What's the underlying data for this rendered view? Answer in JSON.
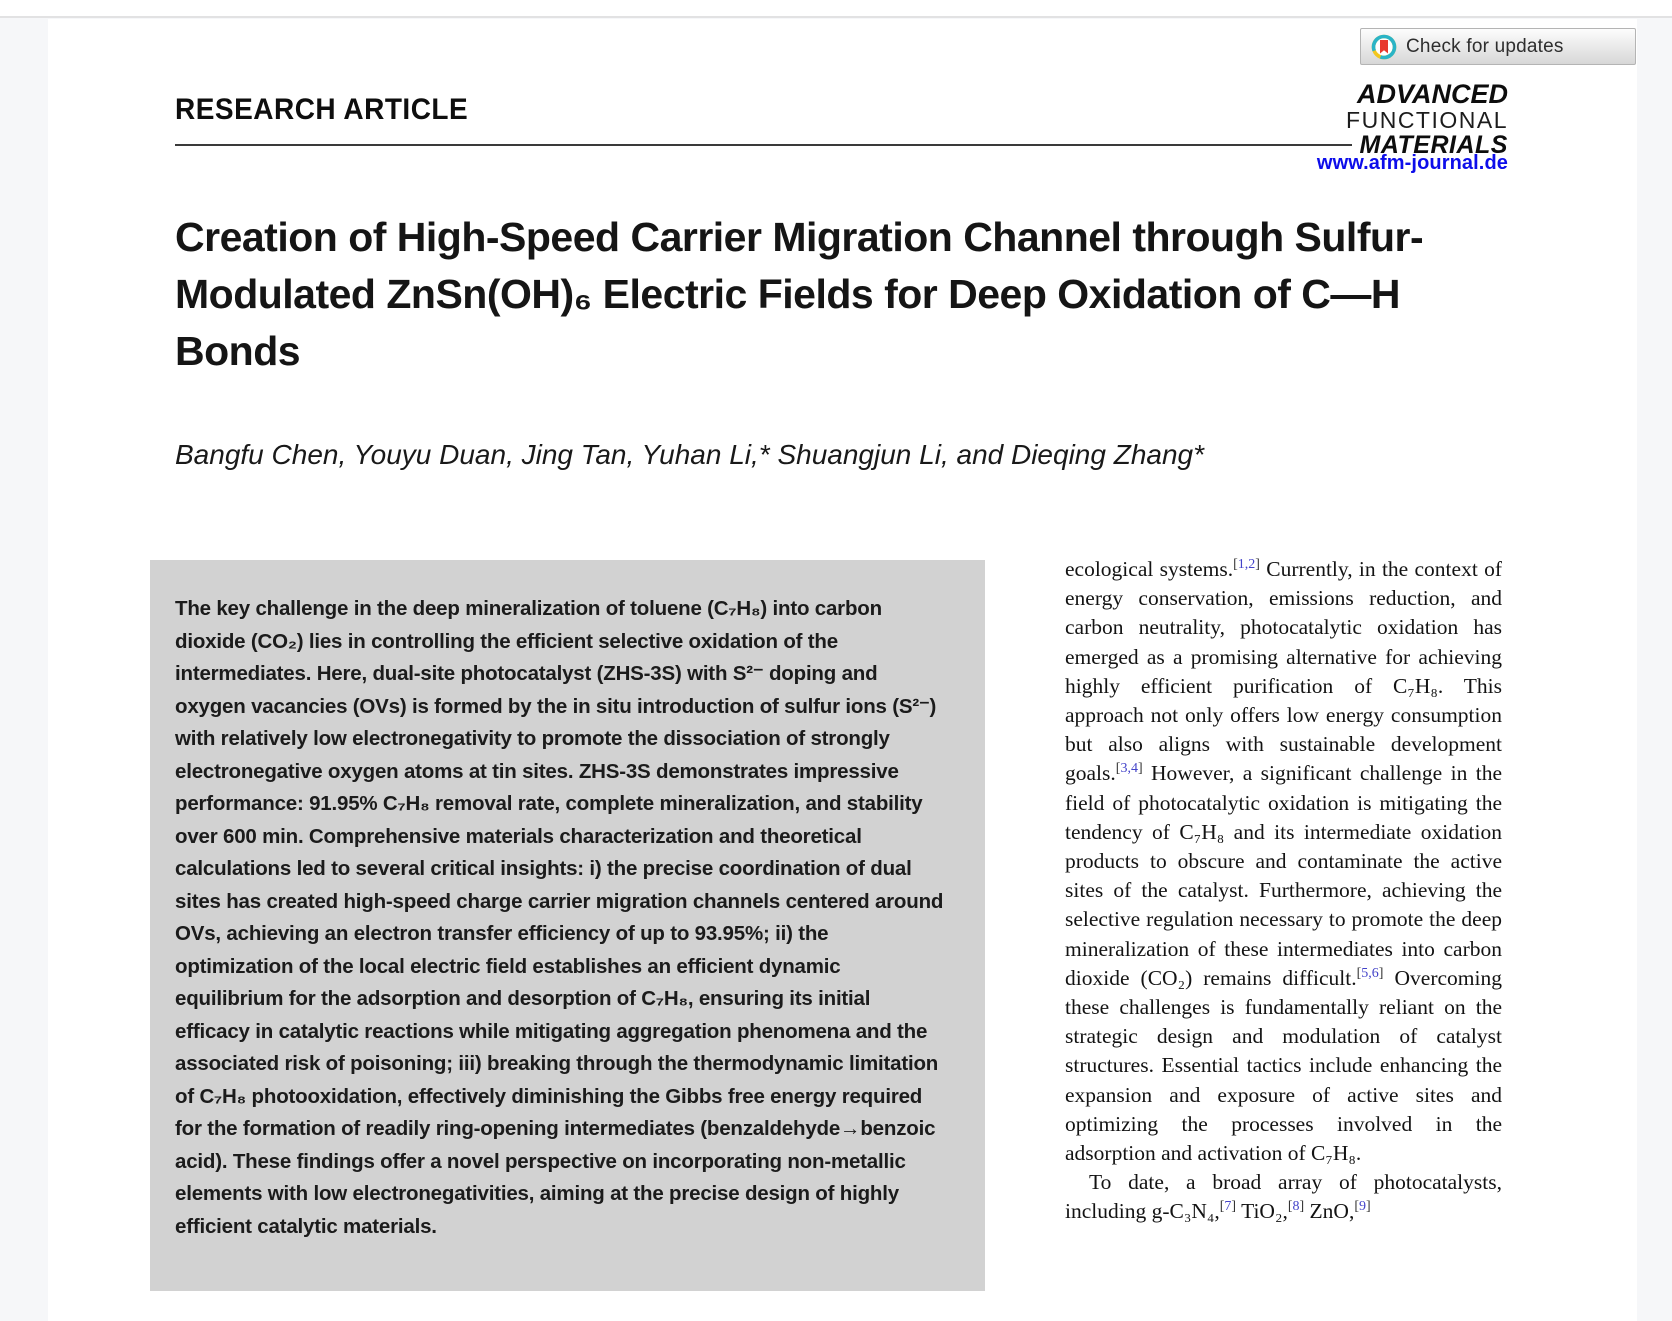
{
  "header": {
    "check_for_updates": "Check for updates",
    "article_type": "RESEARCH ARTICLE",
    "journal_logo": {
      "line1": "ADVANCED",
      "line2": "FUNCTIONAL",
      "line3": "MATERIALS"
    },
    "journal_url": "www.afm-journal.de"
  },
  "article": {
    "title": "Creation of High-Speed Carrier Migration Channel through Sulfur-Modulated ZnSn(OH)₆ Electric Fields for Deep Oxidation of C—H Bonds",
    "authors": "Bangfu Chen, Youyu Duan, Jing Tan, Yuhan Li,* Shuangjun Li, and Dieqing Zhang*",
    "abstract": "The key challenge in the deep mineralization of toluene (C₇H₈) into carbon dioxide (CO₂) lies in controlling the efficient selective oxidation of the intermediates. Here, dual-site photocatalyst (ZHS-3S) with S²⁻ doping and oxygen vacancies (OVs) is formed by the in situ introduction of sulfur ions (S²⁻) with relatively low electronegativity to promote the dissociation of strongly electronegative oxygen atoms at tin sites. ZHS-3S demonstrates impressive performance: 91.95% C₇H₈ removal rate, complete mineralization, and stability over 600 min. Comprehensive materials characterization and theoretical calculations led to several critical insights: i) the precise coordination of dual sites has created high-speed charge carrier migration channels centered around OVs, achieving an electron transfer efficiency of up to 93.95%; ii) the optimization of the local electric field establishes an efficient dynamic equilibrium for the adsorption and desorption of C₇H₈, ensuring its initial efficacy in catalytic reactions while mitigating aggregation phenomena and the associated risk of poisoning; iii) breaking through the thermodynamic limitation of C₇H₈ photooxidation, effectively diminishing the Gibbs free energy required for the formation of readily ring-opening intermediates (benzaldehyde→benzoic acid). These findings offer a novel perspective on incorporating non-metallic elements with low electronegativities, aiming at the precise design of highly efficient catalytic materials.",
    "intro_paragraphs": [
      {
        "segments": [
          {
            "t": "ecological systems."
          },
          {
            "cite": "[1,2]"
          },
          {
            "t": " Currently, in the context of energy conservation, emissions reduction, and carbon neutrality, photocatalytic oxidation has emerged as a promising alternative for achieving highly efficient purification of C₇H₈. This approach not only offers low energy consumption but also aligns with sustainable development goals."
          },
          {
            "cite": "[3,4]"
          },
          {
            "t": " However, a significant challenge in the field of photocatalytic oxidation is mitigating the tendency of C₇H₈ and its intermediate oxidation products to obscure and contaminate the active sites of the catalyst. Furthermore, achieving the selective regulation necessary to promote the deep mineralization of these intermediates into carbon dioxide (CO₂) remains difficult."
          },
          {
            "cite": "[5,6]"
          },
          {
            "t": " Overcoming these challenges is fundamentally reliant on the strategic design and modulation of catalyst structures. Essential tactics include enhancing the expansion and exposure of active sites and optimizing the processes involved in the adsorption and activation of C₇H₈."
          }
        ]
      },
      {
        "segments": [
          {
            "t": "To date, a broad array of photocatalysts, including g-C₃N₄,"
          },
          {
            "cite": "[7]"
          },
          {
            "t": " TiO₂,"
          },
          {
            "cite": "[8]"
          },
          {
            "t": " ZnO,"
          },
          {
            "cite": "[9]"
          }
        ]
      }
    ]
  },
  "colors": {
    "link_blue": "#0d0dea",
    "citation_blue": "#4343c9",
    "abstract_background": "#d2d2d2",
    "page_background": "#f6f7f9",
    "crossmark_teal": "#2ab4c7",
    "crossmark_yellow": "#f2c71f",
    "crossmark_red": "#e8392e"
  }
}
